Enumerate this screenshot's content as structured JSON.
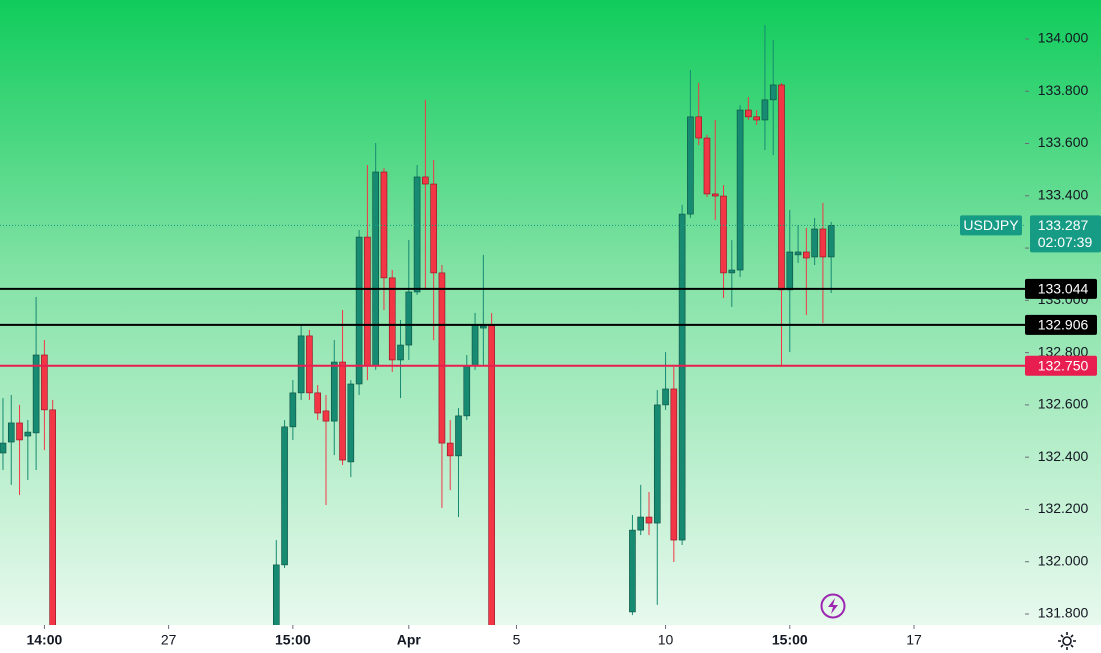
{
  "chart_data": {
    "type": "candlestick",
    "symbol": "USDJPY",
    "last_price": 133.287,
    "countdown": "02:07:39",
    "up_color": "#178a72",
    "down_color": "#f23645",
    "x": [
      0,
      1,
      2,
      3,
      4,
      5,
      6,
      33,
      34,
      35,
      36,
      37,
      38,
      39,
      40,
      41,
      42,
      43,
      44,
      45,
      46,
      47,
      48,
      49,
      50,
      51,
      52,
      53,
      54,
      55,
      56,
      57,
      58,
      59,
      76,
      77,
      78,
      79,
      80,
      81,
      82,
      83,
      84,
      85,
      86,
      87,
      88,
      89,
      90,
      91,
      92,
      93,
      94,
      95,
      96,
      97,
      98,
      99,
      100
    ],
    "open": [
      132.416,
      132.458,
      132.531,
      132.481,
      132.493,
      132.791,
      132.581,
      131.74,
      131.988,
      132.516,
      132.646,
      132.864,
      132.646,
      132.577,
      132.538,
      132.764,
      132.382,
      132.68,
      133.242,
      132.749,
      133.491,
      133.086,
      132.772,
      132.829,
      133.032,
      133.472,
      133.445,
      133.105,
      132.454,
      132.405,
      132.558,
      132.749,
      132.894,
      132.906,
      131.808,
      132.121,
      132.171,
      132.148,
      132.6,
      132.661,
      132.083,
      133.33,
      133.702,
      133.621,
      133.407,
      133.399,
      133.105,
      133.116,
      133.728,
      133.702,
      133.69,
      133.767,
      133.824,
      133.04,
      133.174,
      133.185,
      133.166,
      133.273,
      133.166
    ],
    "high": [
      132.626,
      132.638,
      132.6,
      132.542,
      133.013,
      132.848,
      132.619,
      132.083,
      132.542,
      132.695,
      132.906,
      132.887,
      132.676,
      132.638,
      132.848,
      132.963,
      132.695,
      133.269,
      133.518,
      133.602,
      133.506,
      133.116,
      132.925,
      133.231,
      133.518,
      133.767,
      133.537,
      133.135,
      132.542,
      132.588,
      132.791,
      132.952,
      133.174,
      132.952,
      132.179,
      132.294,
      132.267,
      132.657,
      132.802,
      132.745,
      133.365,
      133.881,
      133.832,
      133.633,
      133.69,
      133.441,
      133.231,
      133.747,
      133.778,
      133.728,
      134.054,
      133.996,
      133.832,
      133.346,
      133.288,
      133.277,
      133.315,
      133.373,
      133.3
    ],
    "low": [
      132.351,
      132.294,
      132.255,
      132.313,
      132.351,
      132.427,
      131.65,
      131.7,
      131.976,
      132.466,
      132.619,
      132.619,
      132.542,
      132.217,
      132.408,
      132.37,
      132.324,
      132.638,
      132.695,
      132.734,
      132.963,
      132.726,
      132.626,
      132.772,
      133.021,
      133.04,
      132.848,
      132.206,
      132.274,
      132.171,
      132.542,
      132.734,
      132.753,
      131.58,
      131.796,
      132.102,
      132.102,
      131.835,
      132.581,
      131.999,
      132.064,
      133.315,
      133.594,
      133.395,
      133.307,
      133.009,
      132.975,
      133.089,
      133.69,
      133.671,
      133.575,
      133.556,
      132.745,
      132.802,
      133.143,
      132.944,
      133.135,
      132.913,
      133.028
    ],
    "close": [
      132.454,
      132.531,
      132.466,
      132.496,
      132.791,
      132.581,
      131.7,
      131.988,
      132.516,
      132.646,
      132.864,
      132.646,
      132.569,
      132.538,
      132.764,
      132.389,
      132.68,
      133.242,
      132.749,
      133.491,
      133.086,
      132.772,
      132.829,
      133.032,
      133.472,
      133.445,
      133.105,
      132.454,
      132.405,
      132.558,
      132.749,
      132.906,
      132.902,
      131.6,
      132.121,
      132.171,
      132.148,
      132.6,
      132.661,
      132.083,
      133.33,
      133.702,
      133.621,
      133.407,
      133.399,
      133.105,
      133.116,
      133.728,
      133.702,
      133.69,
      133.767,
      133.824,
      133.04,
      133.185,
      133.185,
      133.162,
      133.273,
      133.166,
      133.287
    ],
    "xlim": [
      -0.36,
      123.4
    ],
    "xticks": [
      {
        "value": 5,
        "label": "14:00"
      },
      {
        "value": 20,
        "label": "27"
      },
      {
        "value": 35,
        "label": "15:00"
      },
      {
        "value": 49,
        "label": "Apr"
      },
      {
        "value": 62,
        "label": "5"
      },
      {
        "value": 80,
        "label": "10"
      },
      {
        "value": 95,
        "label": "15:00"
      },
      {
        "value": 110,
        "label": "17"
      }
    ],
    "ylim": [
      131.758,
      134.149
    ],
    "yticks": [
      {
        "value": 131.8,
        "label": "131.800"
      },
      {
        "value": 132,
        "label": "132.000"
      },
      {
        "value": 132.2,
        "label": "132.200"
      },
      {
        "value": 132.4,
        "label": "132.400"
      },
      {
        "value": 132.6,
        "label": "132.600"
      },
      {
        "value": 132.8,
        "label": "132.800"
      },
      {
        "value": 133,
        "label": "133.000"
      },
      {
        "value": 133.2,
        "label": "133.200"
      },
      {
        "value": 133.4,
        "label": "133.400"
      },
      {
        "value": 133.6,
        "label": "133.600"
      },
      {
        "value": 133.8,
        "label": "133.800"
      },
      {
        "value": 134,
        "label": "134.000"
      }
    ],
    "price_lines": [
      {
        "value": 133.044,
        "label": "133.044",
        "color": "#000000"
      },
      {
        "value": 132.906,
        "label": "132.906",
        "color": "#000000"
      },
      {
        "value": 132.75,
        "label": "132.750",
        "color": "#e91e50"
      }
    ]
  }
}
